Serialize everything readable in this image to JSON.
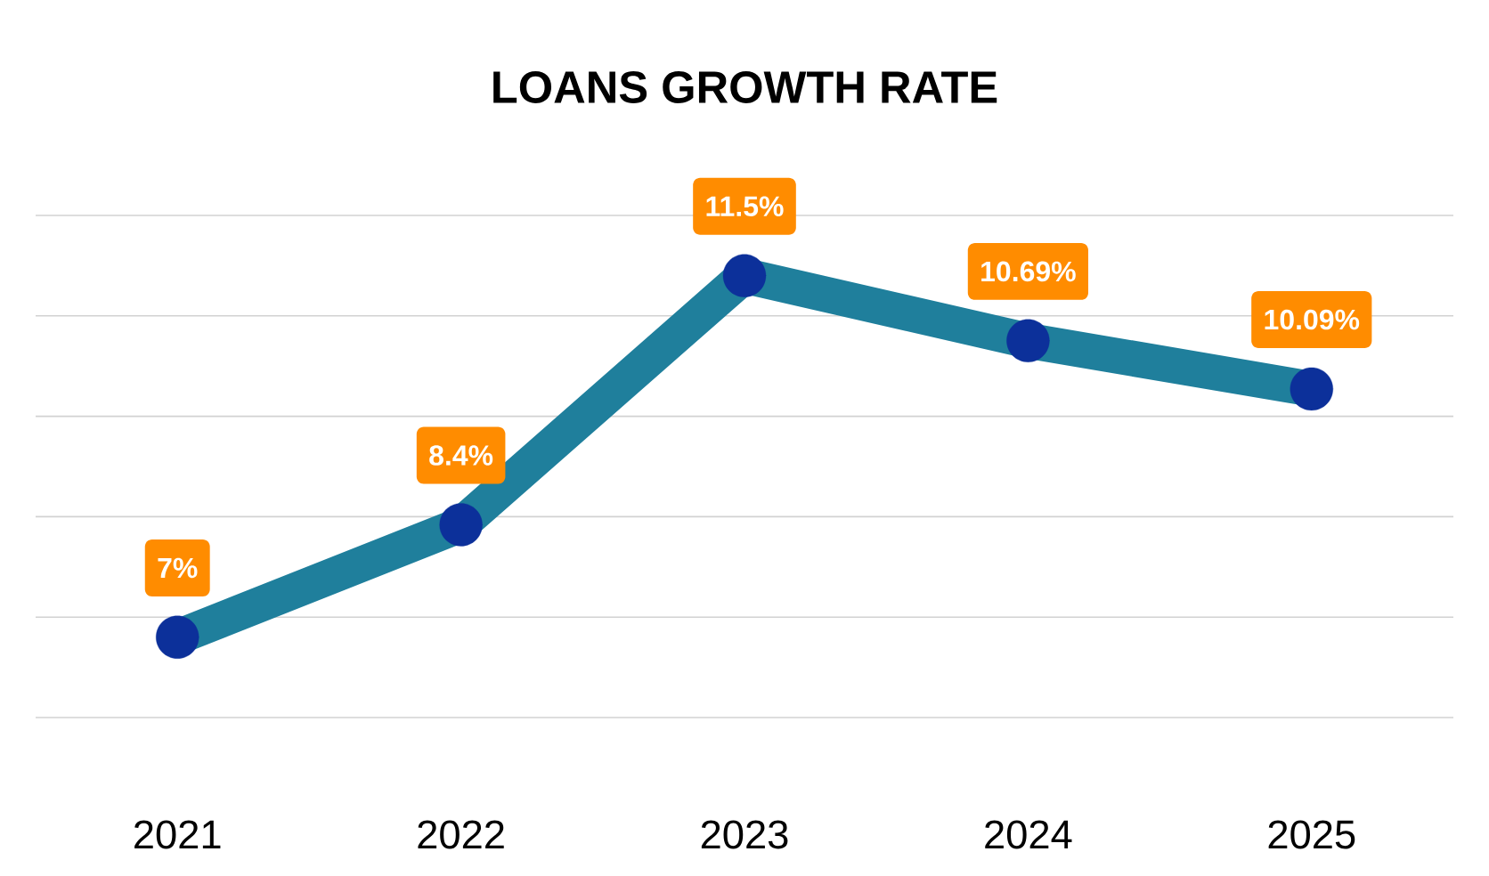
{
  "chart_data": {
    "type": "line",
    "title": "LOANS GROWTH RATE",
    "categories": [
      "2021",
      "2022",
      "2023",
      "2024",
      "2025"
    ],
    "series": [
      {
        "color": "#1f7f9c",
        "values": [
          7,
          8.4,
          11.5,
          10.69,
          10.09
        ],
        "value_labels": [
          "7%",
          "8.4%",
          "11.5%",
          "10.69%",
          "10.09%"
        ]
      }
    ],
    "yticks": [
      {
        "value": 6,
        "label": null
      },
      {
        "value": 7.25,
        "label": null
      },
      {
        "value": 8.5,
        "label": null
      },
      {
        "value": 9.75,
        "label": null
      },
      {
        "value": 11,
        "label": null
      },
      {
        "value": 12.25,
        "label": null
      }
    ],
    "grid": "y",
    "tick_labels": "x",
    "legend": false,
    "marker": "circle",
    "line_style": "solid"
  }
}
